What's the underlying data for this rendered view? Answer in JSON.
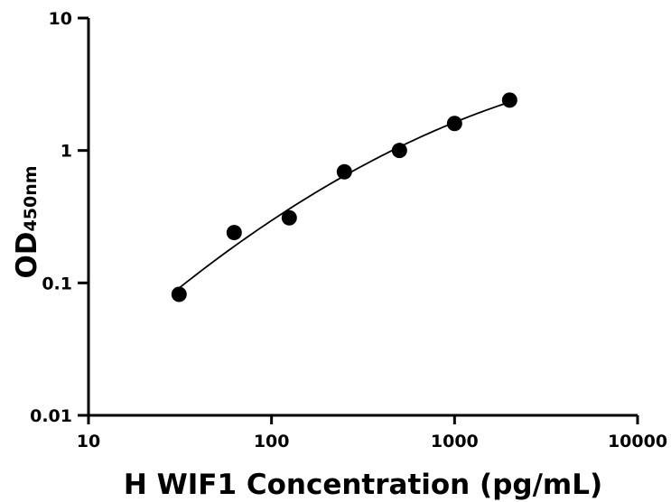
{
  "chart_data": {
    "type": "scatter",
    "xlabel": "H WIF1 Concentration (pg/mL)",
    "ylabel": {
      "main": "OD",
      "subscript": "450nm"
    },
    "xscale": "log",
    "yscale": "log",
    "xlim": [
      10,
      10000
    ],
    "ylim": [
      0.01,
      10
    ],
    "xticks": [
      {
        "value": 10,
        "label": "10"
      },
      {
        "value": 100,
        "label": "100"
      },
      {
        "value": 1000,
        "label": "1000"
      },
      {
        "value": 10000,
        "label": "10000"
      }
    ],
    "yticks": [
      {
        "value": 0.01,
        "label": "0.01"
      },
      {
        "value": 0.1,
        "label": "0.1"
      },
      {
        "value": 1,
        "label": "1"
      },
      {
        "value": 10,
        "label": "10"
      }
    ],
    "points": [
      {
        "x": 31.25,
        "y": 0.082
      },
      {
        "x": 62.5,
        "y": 0.24
      },
      {
        "x": 125,
        "y": 0.31
      },
      {
        "x": 250,
        "y": 0.69
      },
      {
        "x": 500,
        "y": 1.0
      },
      {
        "x": 1000,
        "y": 1.6
      },
      {
        "x": 2000,
        "y": 2.4
      }
    ],
    "fit": "smooth curve through standards",
    "grid": false,
    "legend": "none",
    "colors": {
      "points": "#000000",
      "curve": "#000000",
      "axes": "#000000"
    }
  }
}
